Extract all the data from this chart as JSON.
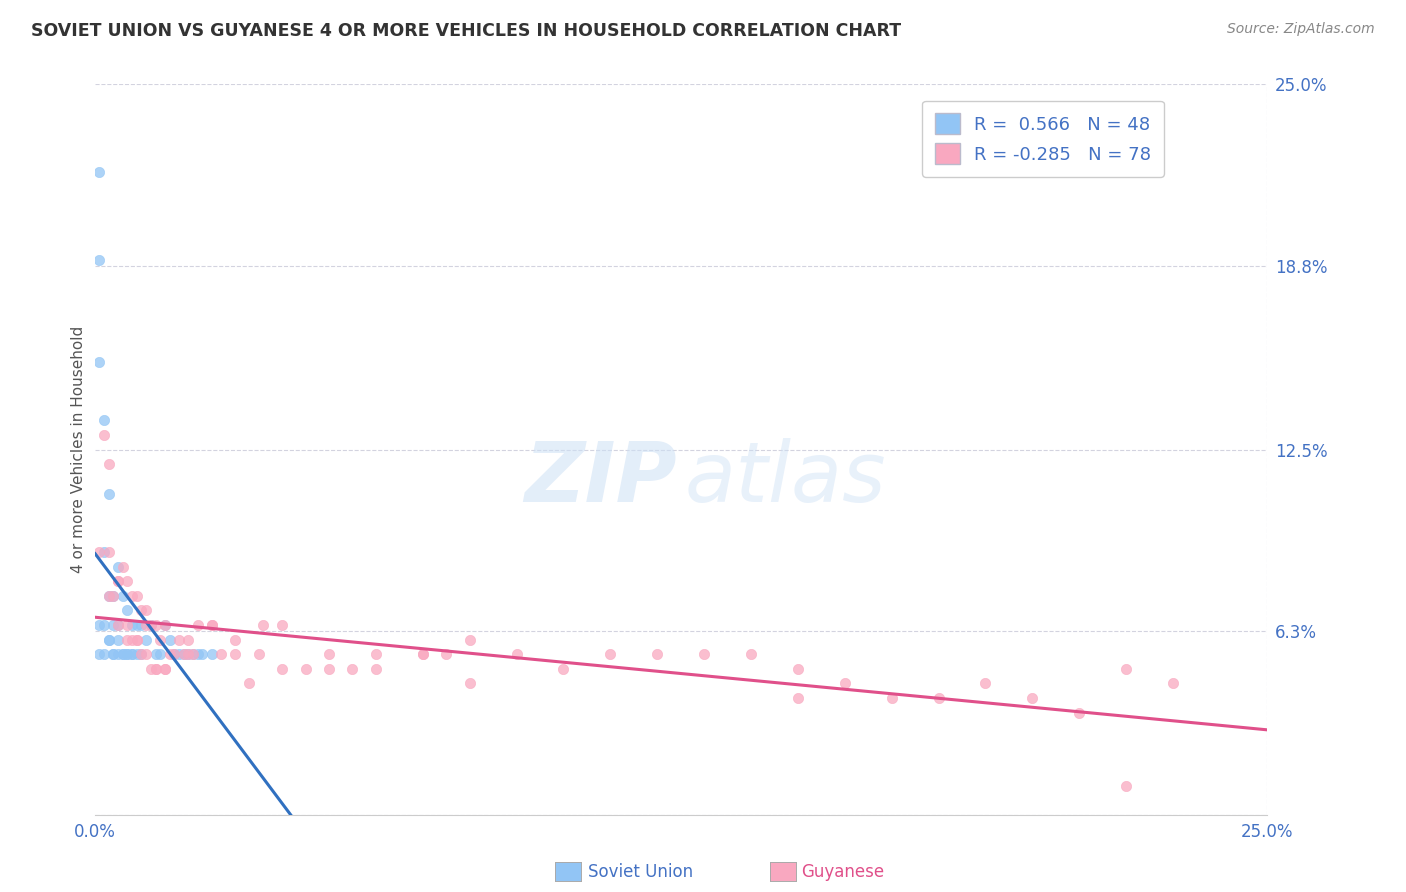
{
  "title": "SOVIET UNION VS GUYANESE 4 OR MORE VEHICLES IN HOUSEHOLD CORRELATION CHART",
  "source_text": "Source: ZipAtlas.com",
  "ylabel": "4 or more Vehicles in Household",
  "xlim": [
    0.0,
    0.25
  ],
  "ylim": [
    0.0,
    0.25
  ],
  "ytick_vals": [
    0.0,
    0.063,
    0.125,
    0.188,
    0.25
  ],
  "ytick_labels": [
    "",
    "6.3%",
    "12.5%",
    "18.8%",
    "25.0%"
  ],
  "xtick_vals": [
    0.0,
    0.25
  ],
  "xtick_labels": [
    "0.0%",
    "25.0%"
  ],
  "grid_color": "#c8c8d8",
  "background_color": "#ffffff",
  "legend_R1": "0.566",
  "legend_N1": "48",
  "legend_R2": "-0.285",
  "legend_N2": "78",
  "color_soviet": "#92c5f5",
  "color_guyanese": "#f9a8c0",
  "trendline_soviet": "#3070c0",
  "trendline_guyanese": "#e0508a",
  "soviet_x": [
    0.001,
    0.001,
    0.001,
    0.001,
    0.001,
    0.002,
    0.002,
    0.002,
    0.002,
    0.003,
    0.003,
    0.003,
    0.004,
    0.004,
    0.004,
    0.005,
    0.005,
    0.005,
    0.006,
    0.006,
    0.007,
    0.007,
    0.008,
    0.008,
    0.009,
    0.009,
    0.01,
    0.01,
    0.011,
    0.012,
    0.013,
    0.014,
    0.015,
    0.016,
    0.017,
    0.018,
    0.019,
    0.02,
    0.021,
    0.022,
    0.023,
    0.025,
    0.003,
    0.004,
    0.005,
    0.006,
    0.007,
    0.008
  ],
  "soviet_y": [
    0.22,
    0.19,
    0.155,
    0.065,
    0.055,
    0.135,
    0.09,
    0.065,
    0.055,
    0.11,
    0.075,
    0.06,
    0.075,
    0.065,
    0.055,
    0.085,
    0.065,
    0.055,
    0.075,
    0.055,
    0.07,
    0.055,
    0.065,
    0.055,
    0.065,
    0.055,
    0.065,
    0.055,
    0.06,
    0.065,
    0.055,
    0.055,
    0.065,
    0.06,
    0.055,
    0.055,
    0.055,
    0.055,
    0.055,
    0.055,
    0.055,
    0.055,
    0.06,
    0.055,
    0.06,
    0.055,
    0.055,
    0.055
  ],
  "guyanese_x": [
    0.001,
    0.002,
    0.003,
    0.003,
    0.004,
    0.005,
    0.005,
    0.006,
    0.007,
    0.007,
    0.008,
    0.008,
    0.009,
    0.009,
    0.01,
    0.01,
    0.011,
    0.011,
    0.012,
    0.012,
    0.013,
    0.013,
    0.014,
    0.015,
    0.015,
    0.016,
    0.017,
    0.018,
    0.019,
    0.02,
    0.021,
    0.022,
    0.025,
    0.027,
    0.03,
    0.033,
    0.036,
    0.04,
    0.045,
    0.05,
    0.055,
    0.06,
    0.07,
    0.075,
    0.08,
    0.09,
    0.1,
    0.11,
    0.12,
    0.13,
    0.14,
    0.15,
    0.16,
    0.17,
    0.18,
    0.19,
    0.2,
    0.21,
    0.22,
    0.23,
    0.003,
    0.005,
    0.007,
    0.009,
    0.011,
    0.013,
    0.015,
    0.02,
    0.025,
    0.03,
    0.035,
    0.04,
    0.05,
    0.06,
    0.07,
    0.08,
    0.15,
    0.22
  ],
  "guyanese_y": [
    0.09,
    0.13,
    0.09,
    0.075,
    0.075,
    0.08,
    0.065,
    0.085,
    0.08,
    0.065,
    0.075,
    0.06,
    0.075,
    0.06,
    0.07,
    0.055,
    0.07,
    0.055,
    0.065,
    0.05,
    0.065,
    0.05,
    0.06,
    0.065,
    0.05,
    0.055,
    0.055,
    0.06,
    0.055,
    0.055,
    0.055,
    0.065,
    0.065,
    0.055,
    0.06,
    0.045,
    0.065,
    0.065,
    0.05,
    0.05,
    0.05,
    0.055,
    0.055,
    0.055,
    0.06,
    0.055,
    0.05,
    0.055,
    0.055,
    0.055,
    0.055,
    0.05,
    0.045,
    0.04,
    0.04,
    0.045,
    0.04,
    0.035,
    0.05,
    0.045,
    0.12,
    0.08,
    0.06,
    0.06,
    0.065,
    0.05,
    0.05,
    0.06,
    0.065,
    0.055,
    0.055,
    0.05,
    0.055,
    0.05,
    0.055,
    0.045,
    0.04,
    0.01
  ]
}
